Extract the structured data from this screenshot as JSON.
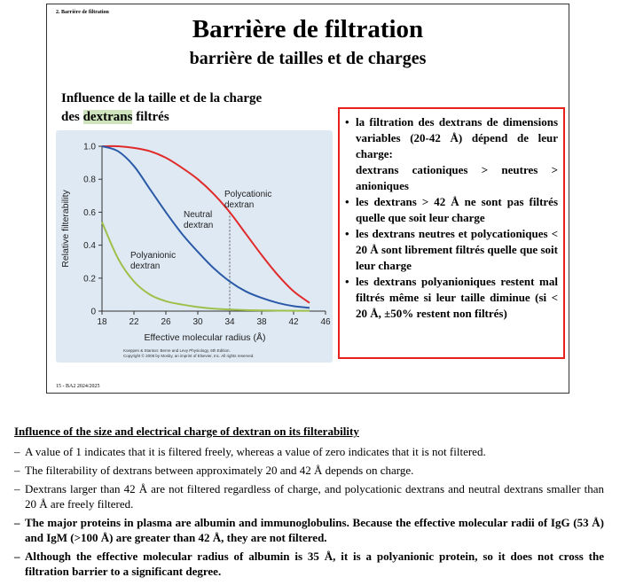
{
  "slide": {
    "tag": "2. Barrière de filtration",
    "title": "Barrière de filtration",
    "subtitle": "barrière de tailles et de charges",
    "influence_line1": "Influence de la taille et de la charge",
    "influence_pre": "des ",
    "influence_highlight": "dextrans",
    "influence_post": " filtrés",
    "footer": "15 - BA2 2024/2025"
  },
  "chart_data": {
    "type": "line",
    "xlabel": "Effective molecular radius (Å)",
    "ylabel": "Relative filterability",
    "xlim": [
      18,
      46
    ],
    "ylim": [
      0,
      1.0
    ],
    "x_ticks": [
      "18",
      "22",
      "26",
      "30",
      "34",
      "38",
      "42",
      "46"
    ],
    "y_ticks": [
      "0",
      "0.2",
      "0.4",
      "0.6",
      "0.8",
      "1.0"
    ],
    "grid": false,
    "series": [
      {
        "name": "Polycationic dextran",
        "color": "#e02b2b",
        "x": [
          18,
          20,
          22,
          24,
          26,
          28,
          30,
          32,
          34,
          36,
          38,
          40,
          42,
          44
        ],
        "y": [
          1.0,
          1.0,
          0.99,
          0.97,
          0.93,
          0.87,
          0.8,
          0.71,
          0.6,
          0.47,
          0.34,
          0.22,
          0.12,
          0.05
        ]
      },
      {
        "name": "Neutral dextran",
        "color": "#2a5aa8",
        "x": [
          18,
          20,
          22,
          24,
          26,
          28,
          30,
          32,
          34,
          36,
          38,
          40,
          42,
          44
        ],
        "y": [
          1.0,
          0.97,
          0.88,
          0.74,
          0.6,
          0.47,
          0.36,
          0.26,
          0.18,
          0.12,
          0.08,
          0.05,
          0.03,
          0.02
        ]
      },
      {
        "name": "Polyanionic dextran",
        "color": "#9dc04a",
        "x": [
          18,
          20,
          22,
          24,
          26,
          28,
          30,
          32,
          34,
          36,
          38,
          40,
          42,
          44
        ],
        "y": [
          0.54,
          0.32,
          0.18,
          0.1,
          0.06,
          0.04,
          0.025,
          0.015,
          0.01,
          0.006,
          0.004,
          0.003,
          0.002,
          0.002
        ]
      }
    ],
    "annotations": [
      {
        "text": "Polycationic",
        "text2": "dextran"
      },
      {
        "text": "Neutral",
        "text2": "dextran"
      },
      {
        "text": "Polyanionic",
        "text2": "dextran"
      }
    ],
    "reference_line_x": 34,
    "credit_line1": "Koeppen & Stanton: Berne and Levy Physiology, 6th Edition.",
    "credit_line2": "Copyright © 2008 by Mosby, an imprint of Elsevier, Inc. All rights reserved."
  },
  "redbox": {
    "items": [
      {
        "text": "la filtration des dextrans de dimensions variables (20-42 Å) dépend de leur charge:",
        "sub": "dextrans cationiques > neutres > anioniques"
      },
      {
        "text": "les dextrans > 42 Å ne sont pas filtrés quelle que soit leur charge"
      },
      {
        "text": "les dextrans neutres et polycationiques < 20 Å sont librement filtrés quelle que soit leur charge"
      },
      {
        "text": "les dextrans polyanioniques restent mal filtrés même si leur taille diminue (si < 20 Å, ±50% restent non filtrés)"
      }
    ]
  },
  "notes": {
    "heading": "Influence of the size and electrical charge of dextran on its filterability",
    "items": [
      {
        "dash": "–",
        "text": "A value of 1 indicates that it is filtered freely, whereas a value of zero indicates that it is not filtered.",
        "bold": false
      },
      {
        "dash": "–",
        "text": "The filterability of dextrans between approximately 20 and 42 Å depends on charge.",
        "bold": false
      },
      {
        "dash": "–",
        "text": "Dextrans larger than 42 Å are not filtered regardless of charge, and polycationic dextrans and neutral dextrans smaller than 20 Å are freely filtered.",
        "bold": false
      },
      {
        "dash": "–",
        "text": "The major proteins in plasma are albumin and immunoglobulins. Because the effective molecular radii of IgG (53 Å) and IgM (>100 Å) are greater than 42 Å, they are not filtered.",
        "bold": true
      },
      {
        "dash": "–",
        "text": "Although the effective molecular radius of albumin is 35 Å, it is a polyanionic protein, so it does not cross the filtration barrier to a significant degree.",
        "bold": true
      }
    ]
  }
}
